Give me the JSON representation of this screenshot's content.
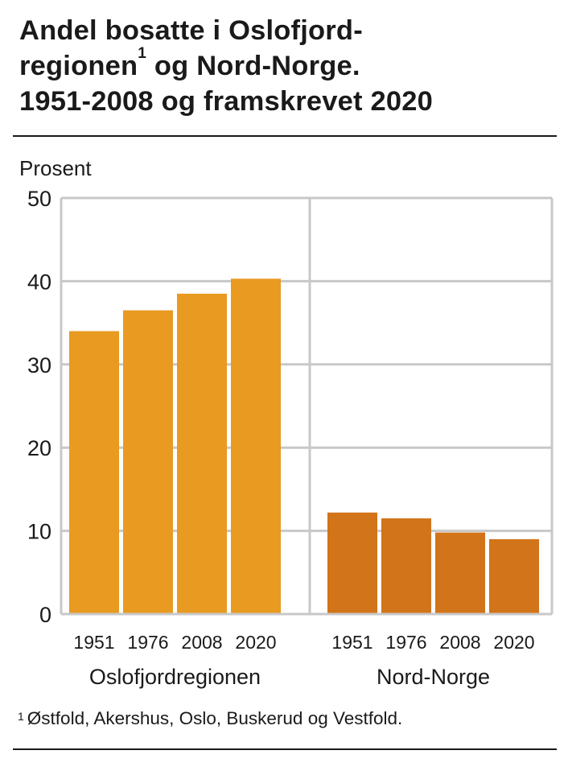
{
  "title": {
    "line1": "Andel bosatte i Oslofjord-",
    "line2": "regionen",
    "line2_sup": "1",
    "line2_rest": " og Nord-Norge.",
    "line3": "1951-2008 og framskrevet 2020"
  },
  "footnote": {
    "marker": "1",
    "text": "Østfold, Akershus, Oslo, Buskerud og Vestfold."
  },
  "chart_data": {
    "type": "bar",
    "ylabel": "Prosent",
    "ylim": [
      0,
      50
    ],
    "yticks": [
      0,
      10,
      20,
      30,
      40,
      50
    ],
    "grid": true,
    "groups": [
      {
        "name": "Oslofjordregionen",
        "color": "#E89A21",
        "categories": [
          "1951",
          "1976",
          "2008",
          "2020"
        ],
        "values": [
          34.0,
          36.5,
          38.5,
          40.3
        ]
      },
      {
        "name": "Nord-Norge",
        "color": "#D27419",
        "categories": [
          "1951",
          "1976",
          "2008",
          "2020"
        ],
        "values": [
          12.2,
          11.5,
          9.8,
          9.0
        ]
      }
    ]
  }
}
